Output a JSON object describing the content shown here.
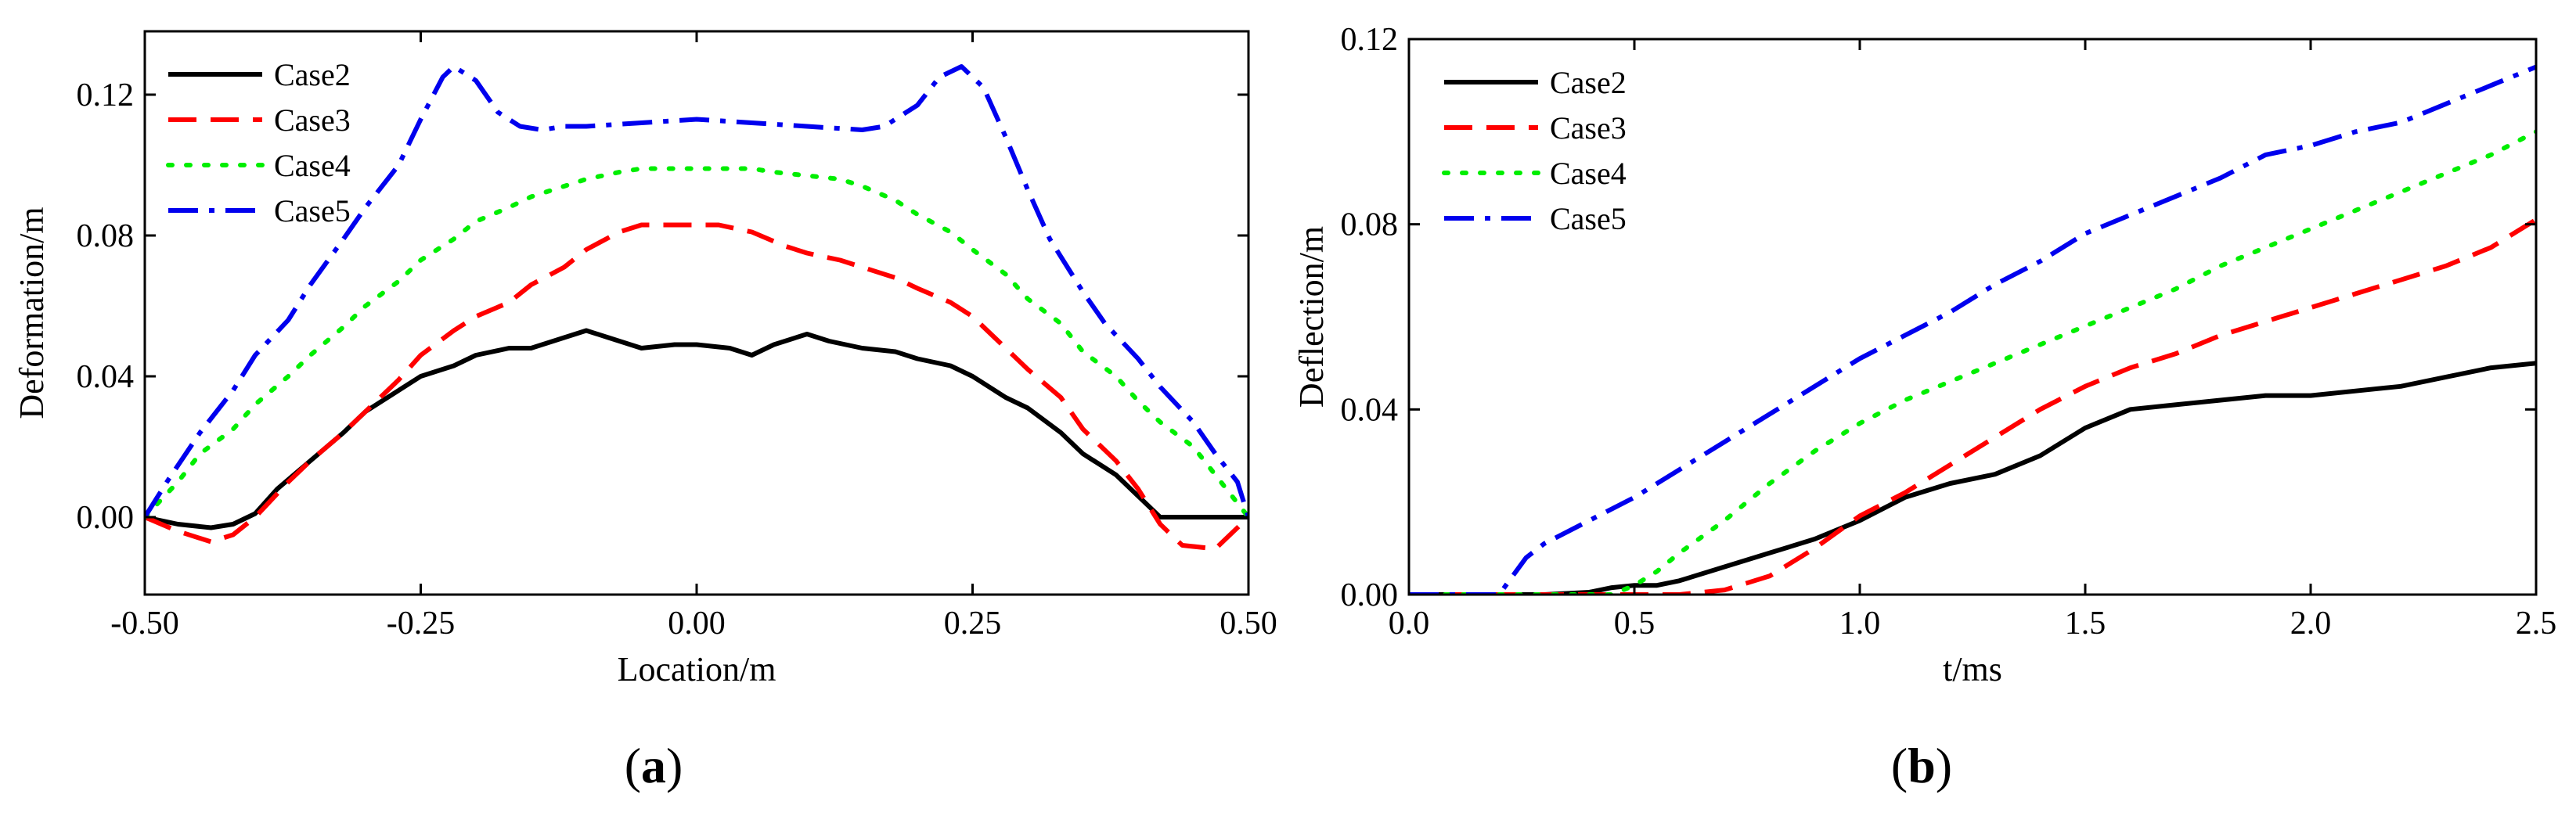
{
  "chart_data": [
    {
      "type": "line",
      "panel": "(a)",
      "panel_letter": "a",
      "xlabel": "Location/m",
      "ylabel": "Deformation/m",
      "xlim": [
        -0.5,
        0.5
      ],
      "ylim": [
        -0.022,
        0.138
      ],
      "xticks": [
        -0.5,
        -0.25,
        0.0,
        0.25,
        0.5
      ],
      "xtick_labels": [
        "-0.50",
        "-0.25",
        "0.00",
        "0.25",
        "0.50"
      ],
      "yticks": [
        0.0,
        0.04,
        0.08,
        0.12
      ],
      "ytick_labels": [
        "0.00",
        "0.04",
        "0.08",
        "0.12"
      ],
      "legend_position": "top-left",
      "series": [
        {
          "name": "Case2",
          "color": "#000000",
          "dash": "solid",
          "x": [
            -0.5,
            -0.47,
            -0.44,
            -0.42,
            -0.4,
            -0.38,
            -0.35,
            -0.32,
            -0.3,
            -0.27,
            -0.25,
            -0.22,
            -0.2,
            -0.17,
            -0.15,
            -0.12,
            -0.1,
            -0.08,
            -0.05,
            -0.02,
            0.0,
            0.03,
            0.05,
            0.07,
            0.1,
            0.12,
            0.15,
            0.18,
            0.2,
            0.23,
            0.25,
            0.28,
            0.3,
            0.33,
            0.35,
            0.38,
            0.4,
            0.42,
            0.45,
            0.48,
            0.5
          ],
          "y": [
            0.0,
            -0.002,
            -0.003,
            -0.002,
            0.001,
            0.008,
            0.016,
            0.024,
            0.03,
            0.036,
            0.04,
            0.043,
            0.046,
            0.048,
            0.048,
            0.051,
            0.053,
            0.051,
            0.048,
            0.049,
            0.049,
            0.048,
            0.046,
            0.049,
            0.052,
            0.05,
            0.048,
            0.047,
            0.045,
            0.043,
            0.04,
            0.034,
            0.031,
            0.024,
            0.018,
            0.012,
            0.006,
            0.0,
            0.0,
            0.0,
            0.0
          ]
        },
        {
          "name": "Case3",
          "color": "#ff0000",
          "dash": "dash",
          "x": [
            -0.5,
            -0.47,
            -0.44,
            -0.42,
            -0.4,
            -0.37,
            -0.35,
            -0.32,
            -0.3,
            -0.27,
            -0.25,
            -0.22,
            -0.2,
            -0.17,
            -0.15,
            -0.12,
            -0.1,
            -0.07,
            -0.05,
            -0.02,
            0.0,
            0.02,
            0.05,
            0.08,
            0.1,
            0.13,
            0.15,
            0.18,
            0.2,
            0.23,
            0.25,
            0.28,
            0.3,
            0.33,
            0.35,
            0.38,
            0.4,
            0.42,
            0.44,
            0.47,
            0.5
          ],
          "y": [
            0.0,
            -0.004,
            -0.007,
            -0.005,
            0.0,
            0.01,
            0.016,
            0.024,
            0.03,
            0.039,
            0.046,
            0.053,
            0.057,
            0.061,
            0.066,
            0.071,
            0.076,
            0.081,
            0.083,
            0.083,
            0.083,
            0.083,
            0.081,
            0.077,
            0.075,
            0.073,
            0.071,
            0.068,
            0.065,
            0.061,
            0.057,
            0.048,
            0.042,
            0.034,
            0.025,
            0.016,
            0.008,
            -0.002,
            -0.008,
            -0.009,
            0.0
          ]
        },
        {
          "name": "Case4",
          "color": "#00ee00",
          "dash": "dot",
          "x": [
            -0.5,
            -0.47,
            -0.45,
            -0.42,
            -0.4,
            -0.37,
            -0.35,
            -0.32,
            -0.3,
            -0.27,
            -0.25,
            -0.22,
            -0.2,
            -0.17,
            -0.15,
            -0.12,
            -0.1,
            -0.07,
            -0.05,
            -0.02,
            0.0,
            0.02,
            0.05,
            0.07,
            0.1,
            0.13,
            0.15,
            0.18,
            0.2,
            0.23,
            0.25,
            0.28,
            0.3,
            0.33,
            0.35,
            0.38,
            0.4,
            0.42,
            0.45,
            0.47,
            0.5
          ],
          "y": [
            0.0,
            0.01,
            0.018,
            0.025,
            0.032,
            0.04,
            0.046,
            0.054,
            0.06,
            0.067,
            0.073,
            0.079,
            0.084,
            0.088,
            0.091,
            0.094,
            0.096,
            0.098,
            0.099,
            0.099,
            0.099,
            0.099,
            0.099,
            0.098,
            0.097,
            0.096,
            0.094,
            0.09,
            0.086,
            0.081,
            0.076,
            0.069,
            0.062,
            0.055,
            0.047,
            0.04,
            0.033,
            0.027,
            0.02,
            0.012,
            0.0
          ]
        },
        {
          "name": "Case5",
          "color": "#0000ee",
          "dash": "dashdot",
          "x": [
            -0.5,
            -0.48,
            -0.45,
            -0.42,
            -0.4,
            -0.37,
            -0.35,
            -0.32,
            -0.3,
            -0.27,
            -0.25,
            -0.23,
            -0.22,
            -0.2,
            -0.18,
            -0.16,
            -0.14,
            -0.12,
            -0.1,
            -0.05,
            0.0,
            0.05,
            0.1,
            0.15,
            0.17,
            0.2,
            0.22,
            0.24,
            0.26,
            0.28,
            0.3,
            0.32,
            0.35,
            0.37,
            0.4,
            0.42,
            0.45,
            0.47,
            0.49,
            0.5
          ],
          "y": [
            0.0,
            0.01,
            0.024,
            0.036,
            0.046,
            0.056,
            0.066,
            0.079,
            0.088,
            0.1,
            0.113,
            0.125,
            0.128,
            0.124,
            0.115,
            0.111,
            0.11,
            0.111,
            0.111,
            0.112,
            0.113,
            0.112,
            0.111,
            0.11,
            0.111,
            0.117,
            0.125,
            0.128,
            0.122,
            0.108,
            0.093,
            0.079,
            0.064,
            0.055,
            0.045,
            0.037,
            0.027,
            0.018,
            0.01,
            0.0
          ]
        }
      ]
    },
    {
      "type": "line",
      "panel": "(b)",
      "panel_letter": "b",
      "xlabel": "t/ms",
      "ylabel": "Deflection/m",
      "xlim": [
        0.0,
        2.5
      ],
      "ylim": [
        0.0,
        0.12
      ],
      "xticks": [
        0.0,
        0.5,
        1.0,
        1.5,
        2.0,
        2.5
      ],
      "xtick_labels": [
        "0.0",
        "0.5",
        "1.0",
        "1.5",
        "2.0",
        "2.5"
      ],
      "yticks": [
        0.0,
        0.04,
        0.08,
        0.12
      ],
      "ytick_labels": [
        "0.00",
        "0.04",
        "0.08",
        "0.12"
      ],
      "legend_position": "top-left",
      "series": [
        {
          "name": "Case2",
          "color": "#000000",
          "dash": "solid",
          "x": [
            0.0,
            0.3,
            0.4,
            0.45,
            0.5,
            0.55,
            0.6,
            0.7,
            0.8,
            0.9,
            1.0,
            1.1,
            1.2,
            1.3,
            1.4,
            1.5,
            1.6,
            1.7,
            1.8,
            1.9,
            2.0,
            2.1,
            2.2,
            2.3,
            2.4,
            2.5
          ],
          "y": [
            0.0,
            0.0,
            0.0005,
            0.0015,
            0.002,
            0.002,
            0.003,
            0.006,
            0.009,
            0.012,
            0.016,
            0.021,
            0.024,
            0.026,
            0.03,
            0.036,
            0.04,
            0.041,
            0.042,
            0.043,
            0.043,
            0.044,
            0.045,
            0.047,
            0.049,
            0.05
          ]
        },
        {
          "name": "Case3",
          "color": "#ff0000",
          "dash": "dash",
          "x": [
            0.0,
            0.5,
            0.6,
            0.7,
            0.8,
            0.9,
            1.0,
            1.1,
            1.2,
            1.3,
            1.4,
            1.5,
            1.6,
            1.7,
            1.8,
            1.9,
            2.0,
            2.1,
            2.2,
            2.3,
            2.4,
            2.5
          ],
          "y": [
            0.0,
            0.0,
            0.0,
            0.001,
            0.004,
            0.01,
            0.017,
            0.022,
            0.028,
            0.034,
            0.04,
            0.045,
            0.049,
            0.052,
            0.056,
            0.059,
            0.062,
            0.065,
            0.068,
            0.071,
            0.075,
            0.081
          ]
        },
        {
          "name": "Case4",
          "color": "#00ee00",
          "dash": "dot",
          "x": [
            0.0,
            0.45,
            0.5,
            0.55,
            0.6,
            0.7,
            0.8,
            0.9,
            1.0,
            1.1,
            1.2,
            1.3,
            1.4,
            1.5,
            1.6,
            1.7,
            1.8,
            1.9,
            2.0,
            2.1,
            2.2,
            2.3,
            2.4,
            2.5
          ],
          "y": [
            0.0,
            0.0,
            0.002,
            0.005,
            0.009,
            0.016,
            0.024,
            0.031,
            0.037,
            0.042,
            0.046,
            0.05,
            0.054,
            0.058,
            0.062,
            0.066,
            0.071,
            0.075,
            0.079,
            0.083,
            0.087,
            0.091,
            0.095,
            0.1
          ]
        },
        {
          "name": "Case5",
          "color": "#0000ee",
          "dash": "dashdot",
          "x": [
            0.0,
            0.2,
            0.23,
            0.26,
            0.3,
            0.4,
            0.5,
            0.6,
            0.7,
            0.8,
            0.9,
            1.0,
            1.1,
            1.2,
            1.3,
            1.4,
            1.5,
            1.6,
            1.7,
            1.8,
            1.9,
            2.0,
            2.1,
            2.2,
            2.3,
            2.4,
            2.5
          ],
          "y": [
            0.0,
            0.0,
            0.004,
            0.008,
            0.011,
            0.016,
            0.021,
            0.027,
            0.033,
            0.039,
            0.045,
            0.051,
            0.056,
            0.061,
            0.067,
            0.072,
            0.078,
            0.082,
            0.086,
            0.09,
            0.095,
            0.097,
            0.1,
            0.102,
            0.106,
            0.11,
            0.114
          ]
        }
      ]
    }
  ]
}
